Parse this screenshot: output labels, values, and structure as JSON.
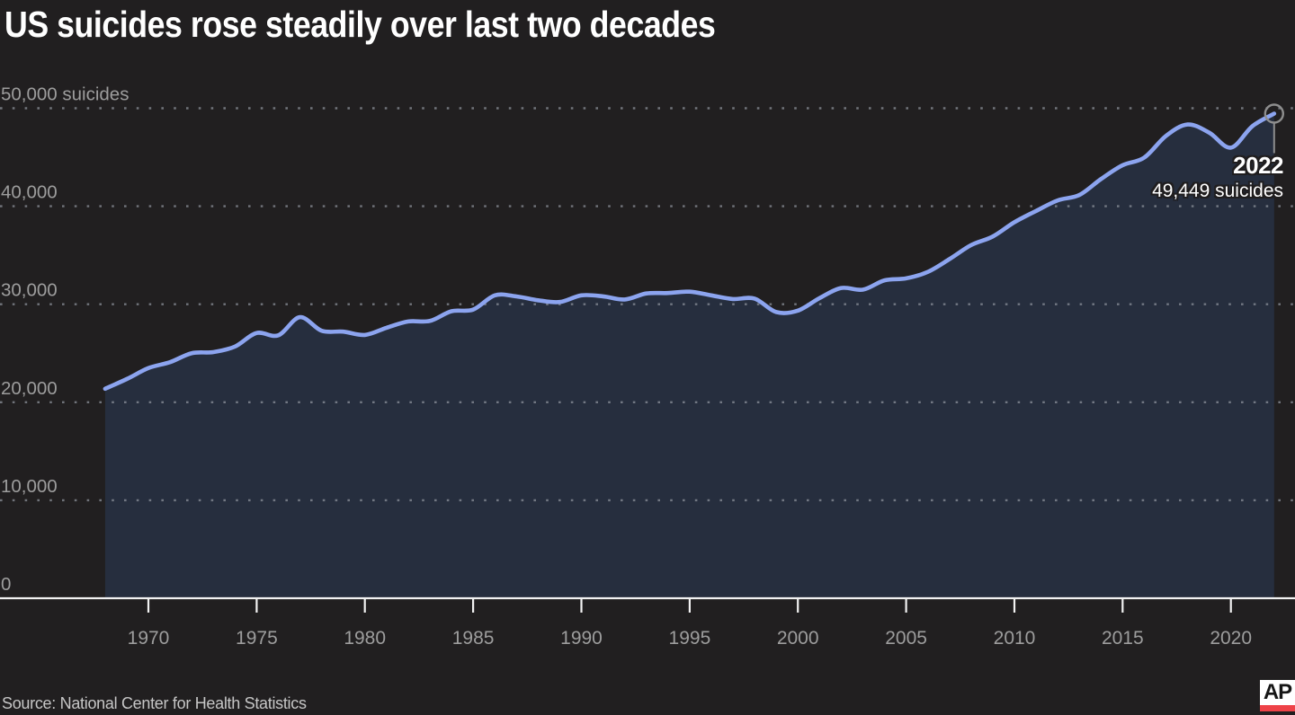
{
  "title": "US suicides rose steadily over last two decades",
  "annotation": {
    "year": "2022",
    "value_label": "49,449 suicides"
  },
  "footer": {
    "source": "Source: National Center for Health Statistics",
    "logo_text": "AP"
  },
  "colors": {
    "background": "#211F20",
    "line": "#8CA4EF",
    "area_fill": "#262E3E",
    "grid_dots": "#90959E",
    "axis": "#F2F2F2",
    "tick_label": "#9D9D9D",
    "annotation_text": "#FFFFFF",
    "marker_ring": "#8E8E8E",
    "logo_red": "#EE4248",
    "title_text": "#FFFFFF"
  },
  "chart_data": {
    "type": "area",
    "title": "US suicides rose steadily over last two decades",
    "xlabel": "",
    "ylabel": "suicides",
    "legend": "none",
    "grid": "horizontal-dotted",
    "xlim": [
      1968,
      2022
    ],
    "ylim": [
      0,
      50000
    ],
    "x_ticks": [
      1970,
      1975,
      1980,
      1985,
      1990,
      1995,
      2000,
      2005,
      2010,
      2015,
      2020
    ],
    "y_ticks": [
      {
        "value": 0,
        "label": "0"
      },
      {
        "value": 10000,
        "label": "10,000"
      },
      {
        "value": 20000,
        "label": "20,000"
      },
      {
        "value": 30000,
        "label": "30,000"
      },
      {
        "value": 40000,
        "label": "40,000"
      },
      {
        "value": 50000,
        "label": "50,000 suicides"
      }
    ],
    "x": [
      1968,
      1969,
      1970,
      1971,
      1972,
      1973,
      1974,
      1975,
      1976,
      1977,
      1978,
      1979,
      1980,
      1981,
      1982,
      1983,
      1984,
      1985,
      1986,
      1987,
      1988,
      1989,
      1990,
      1991,
      1992,
      1993,
      1994,
      1995,
      1996,
      1997,
      1998,
      1999,
      2000,
      2001,
      2002,
      2003,
      2004,
      2005,
      2006,
      2007,
      2008,
      2009,
      2010,
      2011,
      2012,
      2013,
      2014,
      2015,
      2016,
      2017,
      2018,
      2019,
      2020,
      2021,
      2022
    ],
    "values": [
      21372,
      22364,
      23480,
      24092,
      25004,
      25118,
      25683,
      27063,
      26832,
      28681,
      27294,
      27206,
      26869,
      27596,
      28242,
      28295,
      29286,
      29453,
      30904,
      30796,
      30407,
      30232,
      30906,
      30810,
      30484,
      31102,
      31142,
      31284,
      30903,
      30535,
      30575,
      29199,
      29350,
      30622,
      31655,
      31484,
      32439,
      32637,
      33300,
      34598,
      36035,
      36909,
      38364,
      39518,
      40600,
      41149,
      42773,
      44193,
      44965,
      47173,
      48344,
      47511,
      45979,
      48183,
      49449
    ],
    "highlight_point": {
      "x": 2022,
      "y": 49449
    }
  }
}
